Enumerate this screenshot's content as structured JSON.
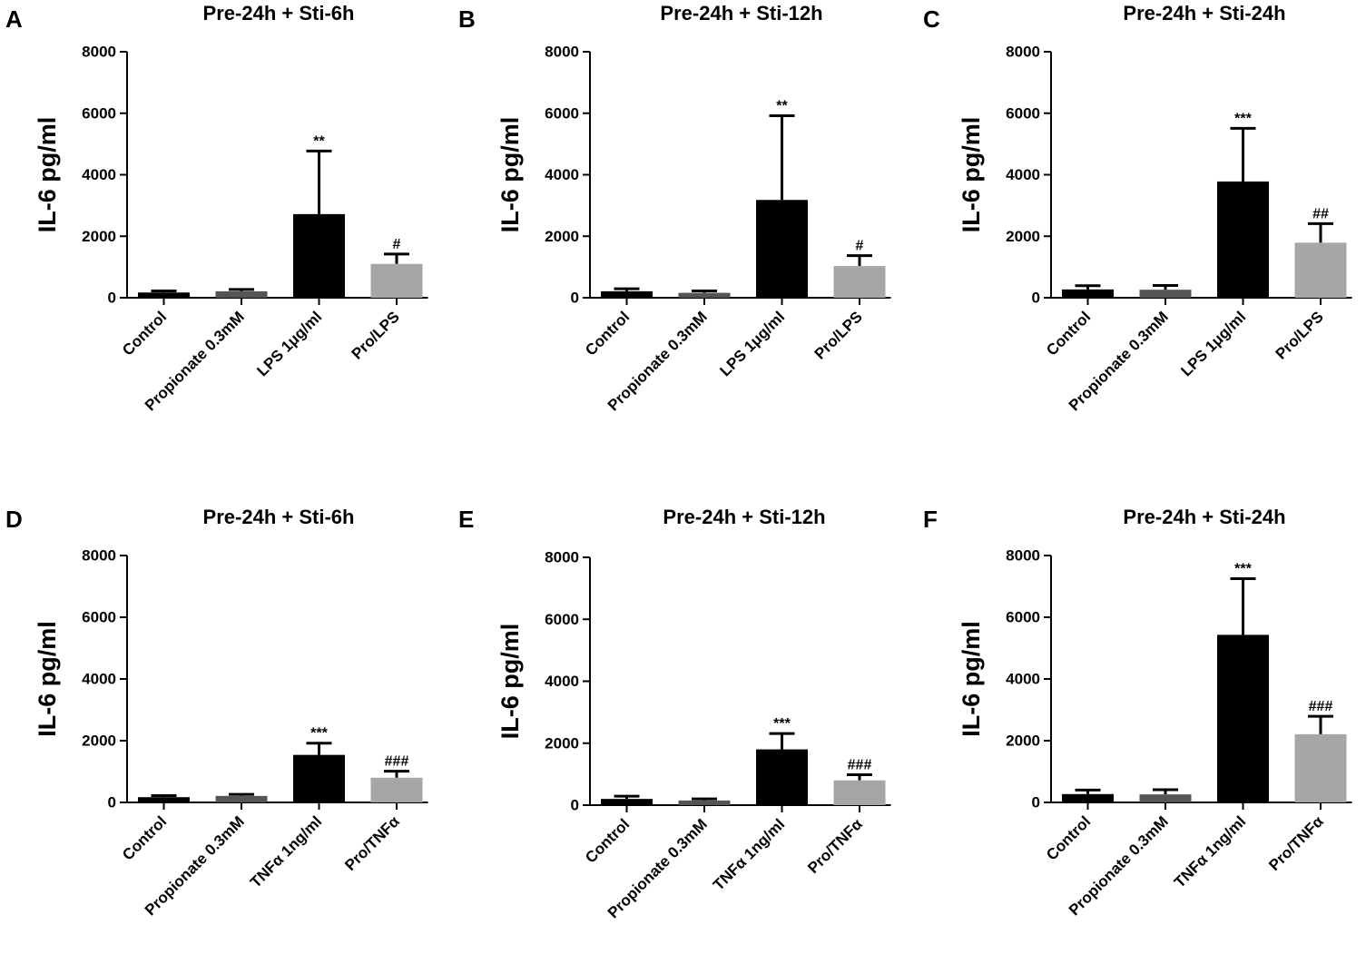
{
  "colors": {
    "control": "#000000",
    "propionate": "#555555",
    "stimulus": "#000000",
    "combo": "#a6a6a8",
    "axis": "#000000"
  },
  "chart_data": [
    {
      "panel": "A",
      "type": "bar",
      "title": "Pre-24h + Sti-6h",
      "ylabel": "IL-6 pg/ml",
      "xlabel": "",
      "ylim": [
        0,
        8000
      ],
      "yticks": [
        "0",
        "2000",
        "4000",
        "6000",
        "8000"
      ],
      "categories": [
        "Control",
        "Propionate 0.3mM",
        "LPS 1μg/ml",
        "Pro/LPS"
      ],
      "values": [
        170,
        210,
        2720,
        1100
      ],
      "errors": [
        50,
        60,
        2050,
        320
      ],
      "significance": [
        "",
        "",
        "**",
        "#"
      ]
    },
    {
      "panel": "B",
      "type": "bar",
      "title": "Pre-24h + Sti-12h",
      "ylabel": "IL-6 pg/ml",
      "xlabel": "",
      "ylim": [
        0,
        8000
      ],
      "yticks": [
        "0",
        "2000",
        "4000",
        "6000",
        "8000"
      ],
      "categories": [
        "Control",
        "Propionate 0.3mM",
        "LPS 1μg/ml",
        "Pro/LPS"
      ],
      "values": [
        210,
        160,
        3180,
        1030
      ],
      "errors": [
        80,
        60,
        2740,
        340
      ],
      "significance": [
        "",
        "",
        "**",
        "#"
      ]
    },
    {
      "panel": "C",
      "type": "bar",
      "title": "Pre-24h + Sti-24h",
      "ylabel": "IL-6 pg/ml",
      "xlabel": "",
      "ylim": [
        0,
        8000
      ],
      "yticks": [
        "0",
        "2000",
        "4000",
        "6000",
        "8000"
      ],
      "categories": [
        "Control",
        "Propionate 0.3mM",
        "LPS 1μg/ml",
        "Pro/LPS"
      ],
      "values": [
        270,
        260,
        3780,
        1790
      ],
      "errors": [
        120,
        140,
        1730,
        620
      ],
      "significance": [
        "",
        "",
        "***",
        "##"
      ]
    },
    {
      "panel": "D",
      "type": "bar",
      "title": "Pre-24h + Sti-6h",
      "ylabel": "IL-6 pg/ml",
      "xlabel": "",
      "ylim": [
        0,
        8000
      ],
      "yticks": [
        "0",
        "2000",
        "4000",
        "6000",
        "8000"
      ],
      "categories": [
        "Control",
        "Propionate 0.3mM",
        "TNFα 1ng/ml",
        "Pro/TNFα"
      ],
      "values": [
        170,
        210,
        1540,
        800
      ],
      "errors": [
        50,
        50,
        380,
        210
      ],
      "significance": [
        "",
        "",
        "***",
        "###"
      ]
    },
    {
      "panel": "E",
      "type": "bar",
      "title": "Pre-24h + Sti-12h",
      "ylabel": "IL-6 pg/ml",
      "xlabel": "",
      "ylim": [
        0,
        8000
      ],
      "yticks": [
        "0",
        "2000",
        "4000",
        "6000",
        "8000"
      ],
      "categories": [
        "Control",
        "Propionate 0.3mM",
        "TNFα 1ng/ml",
        "Pro/TNFα"
      ],
      "values": [
        200,
        150,
        1800,
        800
      ],
      "errors": [
        90,
        50,
        510,
        180
      ],
      "significance": [
        "",
        "",
        "***",
        "###"
      ]
    },
    {
      "panel": "F",
      "type": "bar",
      "title": "Pre-24h + Sti-24h",
      "ylabel": "IL-6 pg/ml",
      "xlabel": "",
      "ylim": [
        0,
        8000
      ],
      "yticks": [
        "0",
        "2000",
        "4000",
        "6000",
        "8000"
      ],
      "categories": [
        "Control",
        "Propionate 0.3mM",
        "TNFα 1ng/ml",
        "Pro/TNFα"
      ],
      "values": [
        270,
        260,
        5430,
        2210
      ],
      "errors": [
        130,
        150,
        1820,
        580
      ],
      "significance": [
        "",
        "",
        "***",
        "###"
      ]
    }
  ]
}
